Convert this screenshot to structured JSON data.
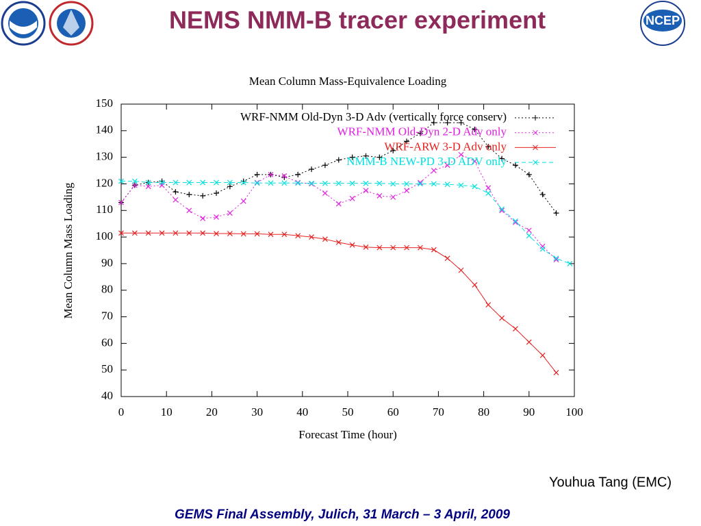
{
  "title": "NEMS NMM-B tracer experiment",
  "logos": {
    "ncep": "NCEP"
  },
  "author": "Youhua Tang (EMC)",
  "footer": "GEMS Final Assembly, Julich, 31 March – 3 April, 2009",
  "chart_data": {
    "type": "line",
    "title": "Mean Column Mass-Equivalence Loading",
    "x_label": "Forecast Time (hour)",
    "y_label": "Mean Column Mass Loading",
    "x": [
      0,
      3,
      6,
      9,
      12,
      15,
      18,
      21,
      24,
      27,
      30,
      33,
      36,
      39,
      42,
      45,
      48,
      51,
      54,
      57,
      60,
      63,
      66,
      69,
      72,
      75,
      78,
      81,
      84,
      87,
      90,
      93,
      96,
      99
    ],
    "xlim": [
      0,
      100
    ],
    "xticks": [
      0,
      10,
      20,
      30,
      40,
      50,
      60,
      70,
      80,
      90,
      100
    ],
    "ylim": [
      40,
      150
    ],
    "yticks": [
      40,
      50,
      60,
      70,
      80,
      90,
      100,
      110,
      120,
      130,
      140,
      150
    ],
    "grid": false,
    "legend": "top-right",
    "series": [
      {
        "name": "WRF-NMM Old-Dyn 3-D Adv (vertically force conserv)",
        "color": "#000000",
        "marker": "plus",
        "line_style": "dotted",
        "values": [
          113,
          119.5,
          120.5,
          121,
          117,
          116,
          115.5,
          116.5,
          119,
          121,
          123.5,
          123.5,
          122.5,
          123.5,
          125.5,
          127,
          129,
          130,
          130.5,
          130,
          132.5,
          136,
          139,
          143,
          143,
          143,
          140.5,
          134,
          129.5,
          127,
          123.5,
          116,
          109,
          null
        ]
      },
      {
        "name": "WRF-NMM Old-Dyn 2-D Adv only",
        "color": "#e020e0",
        "marker": "cross",
        "line_style": "dotted",
        "values": [
          113,
          119.5,
          119,
          119.5,
          114,
          110,
          107,
          107.5,
          109,
          113.5,
          120.5,
          123.5,
          123,
          120.5,
          120,
          116.5,
          112.5,
          114.5,
          117.5,
          115.5,
          115,
          117.5,
          120.5,
          125,
          127,
          131,
          128.5,
          118.5,
          110,
          105.5,
          102.5,
          96.5,
          91.5,
          null
        ]
      },
      {
        "name": "WRF-ARW 3-D Adv only",
        "color": "#e82020",
        "marker": "cross",
        "line_style": "solid",
        "values": [
          101.5,
          101.5,
          101.5,
          101.5,
          101.5,
          101.5,
          101.5,
          101.3,
          101.3,
          101.2,
          101.2,
          101,
          101,
          100.5,
          100,
          99.2,
          98,
          97,
          96.2,
          96,
          96,
          96,
          96,
          95.2,
          92,
          87.5,
          82,
          74.5,
          69.5,
          65.5,
          60.5,
          55.5,
          49,
          null
        ]
      },
      {
        "name": "NMM-B NEW-PD 3-D ADV only",
        "color": "#00e0e0",
        "marker": "cross",
        "line_style": "dashed",
        "values": [
          121,
          121,
          120.5,
          120.5,
          120.5,
          120.5,
          120.5,
          120.5,
          120.5,
          120.5,
          120.3,
          120.3,
          120.3,
          120.3,
          120.2,
          120.2,
          120.2,
          120.2,
          120.2,
          120.2,
          120,
          120,
          120,
          120,
          119.8,
          119.5,
          119,
          116.5,
          110.5,
          106,
          100.5,
          95.5,
          92,
          90
        ]
      }
    ]
  }
}
